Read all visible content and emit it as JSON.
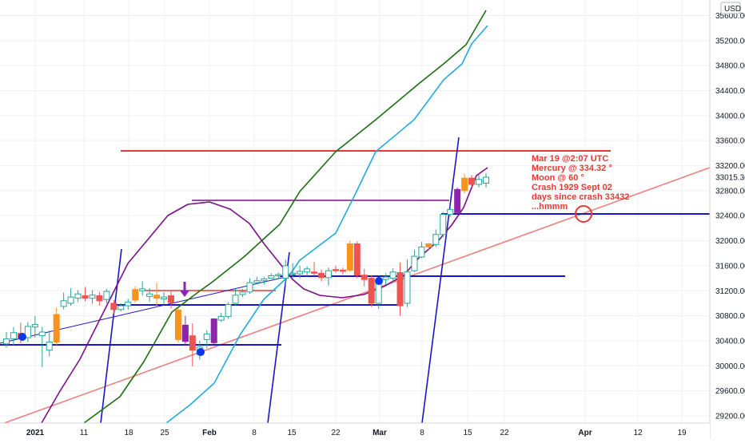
{
  "chart_data": {
    "type": "candlestick",
    "currency": "USD",
    "current_price": "33015.36",
    "y_axis": {
      "min": 29000,
      "max": 35700,
      "ticks": [
        "35600.00",
        "35200.00",
        "34800.00",
        "34400.00",
        "34000.00",
        "33600.00",
        "33200.00",
        "32800.00",
        "32400.00",
        "32000.00",
        "31600.00",
        "31200.00",
        "30800.00",
        "30400.00",
        "30000.00",
        "29600.00",
        "29200.00"
      ]
    },
    "x_axis": {
      "ticks": [
        {
          "label": "2021",
          "bold": true
        },
        {
          "label": "11",
          "bold": false
        },
        {
          "label": "18",
          "bold": false
        },
        {
          "label": "25",
          "bold": false
        },
        {
          "label": "Feb",
          "bold": true
        },
        {
          "label": "8",
          "bold": false
        },
        {
          "label": "15",
          "bold": false
        },
        {
          "label": "22",
          "bold": false
        },
        {
          "label": "Mar",
          "bold": true
        },
        {
          "label": "8",
          "bold": false
        },
        {
          "label": "15",
          "bold": false
        },
        {
          "label": "22",
          "bold": false
        },
        {
          "label": "Apr",
          "bold": true
        },
        {
          "label": "12",
          "bold": false
        },
        {
          "label": "19",
          "bold": false
        }
      ]
    },
    "candles": [
      {
        "o": 30350,
        "h": 30540,
        "l": 30290,
        "c": 30430
      },
      {
        "o": 30430,
        "h": 30620,
        "l": 30330,
        "c": 30530
      },
      {
        "o": 30520,
        "h": 30690,
        "l": 30360,
        "c": 30440
      },
      {
        "o": 30450,
        "h": 30700,
        "l": 30380,
        "c": 30630
      },
      {
        "o": 30620,
        "h": 30800,
        "l": 30450,
        "c": 30660
      },
      {
        "o": 30480,
        "h": 30620,
        "l": 29980,
        "c": 30540
      },
      {
        "o": 30250,
        "h": 30560,
        "l": 30150,
        "c": 30380
      },
      {
        "o": 30380,
        "h": 30930,
        "l": 30330,
        "c": 30820
      },
      {
        "o": 30950,
        "h": 31170,
        "l": 30900,
        "c": 31040
      },
      {
        "o": 31000,
        "h": 31240,
        "l": 30960,
        "c": 31100
      },
      {
        "o": 31080,
        "h": 31210,
        "l": 31020,
        "c": 31150
      },
      {
        "o": 31120,
        "h": 31260,
        "l": 31030,
        "c": 31080
      },
      {
        "o": 31080,
        "h": 31210,
        "l": 30990,
        "c": 31130
      },
      {
        "o": 31120,
        "h": 31180,
        "l": 30960,
        "c": 31040
      },
      {
        "o": 31060,
        "h": 31230,
        "l": 31000,
        "c": 31190
      },
      {
        "o": 31000,
        "h": 31050,
        "l": 30830,
        "c": 30900
      },
      {
        "o": 30900,
        "h": 31000,
        "l": 30870,
        "c": 30960
      },
      {
        "o": 30960,
        "h": 31070,
        "l": 30900,
        "c": 31020
      },
      {
        "o": 31050,
        "h": 31270,
        "l": 31010,
        "c": 31220
      },
      {
        "o": 31200,
        "h": 31350,
        "l": 31120,
        "c": 31230
      },
      {
        "o": 31110,
        "h": 31240,
        "l": 31020,
        "c": 31150
      },
      {
        "o": 31130,
        "h": 31330,
        "l": 30940,
        "c": 31080
      },
      {
        "o": 31070,
        "h": 31180,
        "l": 30980,
        "c": 31100
      },
      {
        "o": 31120,
        "h": 31210,
        "l": 30920,
        "c": 31010
      },
      {
        "o": 30420,
        "h": 30920,
        "l": 30370,
        "c": 30890
      },
      {
        "o": 30650,
        "h": 30800,
        "l": 30320,
        "c": 30390
      },
      {
        "o": 30480,
        "h": 30680,
        "l": 29990,
        "c": 30250
      },
      {
        "o": 30180,
        "h": 30400,
        "l": 30100,
        "c": 30300
      },
      {
        "o": 30420,
        "h": 30570,
        "l": 30280,
        "c": 30510
      },
      {
        "o": 30370,
        "h": 30760,
        "l": 30340,
        "c": 30750
      },
      {
        "o": 30730,
        "h": 30850,
        "l": 30700,
        "c": 30790
      },
      {
        "o": 30790,
        "h": 31020,
        "l": 30750,
        "c": 30980
      },
      {
        "o": 31000,
        "h": 31230,
        "l": 30960,
        "c": 31130
      },
      {
        "o": 31140,
        "h": 31230,
        "l": 31100,
        "c": 31180
      },
      {
        "o": 31180,
        "h": 31400,
        "l": 31150,
        "c": 31330
      },
      {
        "o": 31330,
        "h": 31420,
        "l": 31300,
        "c": 31360
      },
      {
        "o": 31360,
        "h": 31420,
        "l": 31300,
        "c": 31390
      },
      {
        "o": 31400,
        "h": 31480,
        "l": 31390,
        "c": 31440
      },
      {
        "o": 31440,
        "h": 31490,
        "l": 31380,
        "c": 31460
      },
      {
        "o": 31400,
        "h": 31700,
        "l": 31270,
        "c": 31600
      },
      {
        "o": 31470,
        "h": 31640,
        "l": 31400,
        "c": 31480
      },
      {
        "o": 31470,
        "h": 31600,
        "l": 31400,
        "c": 31510
      },
      {
        "o": 31500,
        "h": 31590,
        "l": 31430,
        "c": 31550
      },
      {
        "o": 31500,
        "h": 31660,
        "l": 31440,
        "c": 31480
      },
      {
        "o": 31480,
        "h": 31540,
        "l": 31350,
        "c": 31410
      },
      {
        "o": 31410,
        "h": 31570,
        "l": 31280,
        "c": 31520
      },
      {
        "o": 31540,
        "h": 31600,
        "l": 31490,
        "c": 31530
      },
      {
        "o": 31530,
        "h": 31570,
        "l": 31460,
        "c": 31510
      },
      {
        "o": 31530,
        "h": 32000,
        "l": 31500,
        "c": 31950
      },
      {
        "o": 31950,
        "h": 31990,
        "l": 31400,
        "c": 31450
      },
      {
        "o": 31450,
        "h": 31550,
        "l": 31270,
        "c": 31380
      },
      {
        "o": 31400,
        "h": 31450,
        "l": 30940,
        "c": 31000
      },
      {
        "o": 31000,
        "h": 31400,
        "l": 30910,
        "c": 31380
      },
      {
        "o": 31380,
        "h": 31480,
        "l": 31300,
        "c": 31420
      },
      {
        "o": 31400,
        "h": 31560,
        "l": 31340,
        "c": 31500
      },
      {
        "o": 31490,
        "h": 31650,
        "l": 30800,
        "c": 30960
      },
      {
        "o": 31000,
        "h": 31700,
        "l": 30940,
        "c": 31500
      },
      {
        "o": 31520,
        "h": 31850,
        "l": 31500,
        "c": 31750
      },
      {
        "o": 31740,
        "h": 31980,
        "l": 31720,
        "c": 31900
      },
      {
        "o": 31900,
        "h": 31960,
        "l": 31860,
        "c": 31950
      },
      {
        "o": 31940,
        "h": 32180,
        "l": 31900,
        "c": 32100
      },
      {
        "o": 32100,
        "h": 32460,
        "l": 32060,
        "c": 32420
      },
      {
        "o": 32420,
        "h": 32560,
        "l": 32380,
        "c": 32500
      },
      {
        "o": 32820,
        "h": 32850,
        "l": 32420,
        "c": 32450
      },
      {
        "o": 32800,
        "h": 33070,
        "l": 32760,
        "c": 33000
      },
      {
        "o": 33000,
        "h": 33050,
        "l": 32860,
        "c": 32900
      },
      {
        "o": 32900,
        "h": 33050,
        "l": 32850,
        "c": 32980
      },
      {
        "o": 32920,
        "h": 33080,
        "l": 32850,
        "c": 33015
      }
    ],
    "annotation_lines": [
      "Mar 19 @2:07 UTC",
      "Mercury @ 334.32 °",
      "Moon @ 60 °",
      "Crash 1929 Sept 02",
      "days since crash 33432",
      "...hmmm"
    ],
    "colors": {
      "up_candle": "#ffffff",
      "up_border": "#26a69a",
      "down_candle": "#ef5350",
      "orange_candle": "#f7941d",
      "purple_candle": "#8e24aa",
      "blue_line": "#1a16c8",
      "green_line": "#1b6e12",
      "cyan_line": "#22aadf",
      "purple_line": "#7b0f8a",
      "red_line": "#e53935",
      "pink_line": "#ef7f7f",
      "annotation_text": "#e53935",
      "grid": "#eef1f6",
      "marker_blue": "#0d37e8"
    }
  }
}
